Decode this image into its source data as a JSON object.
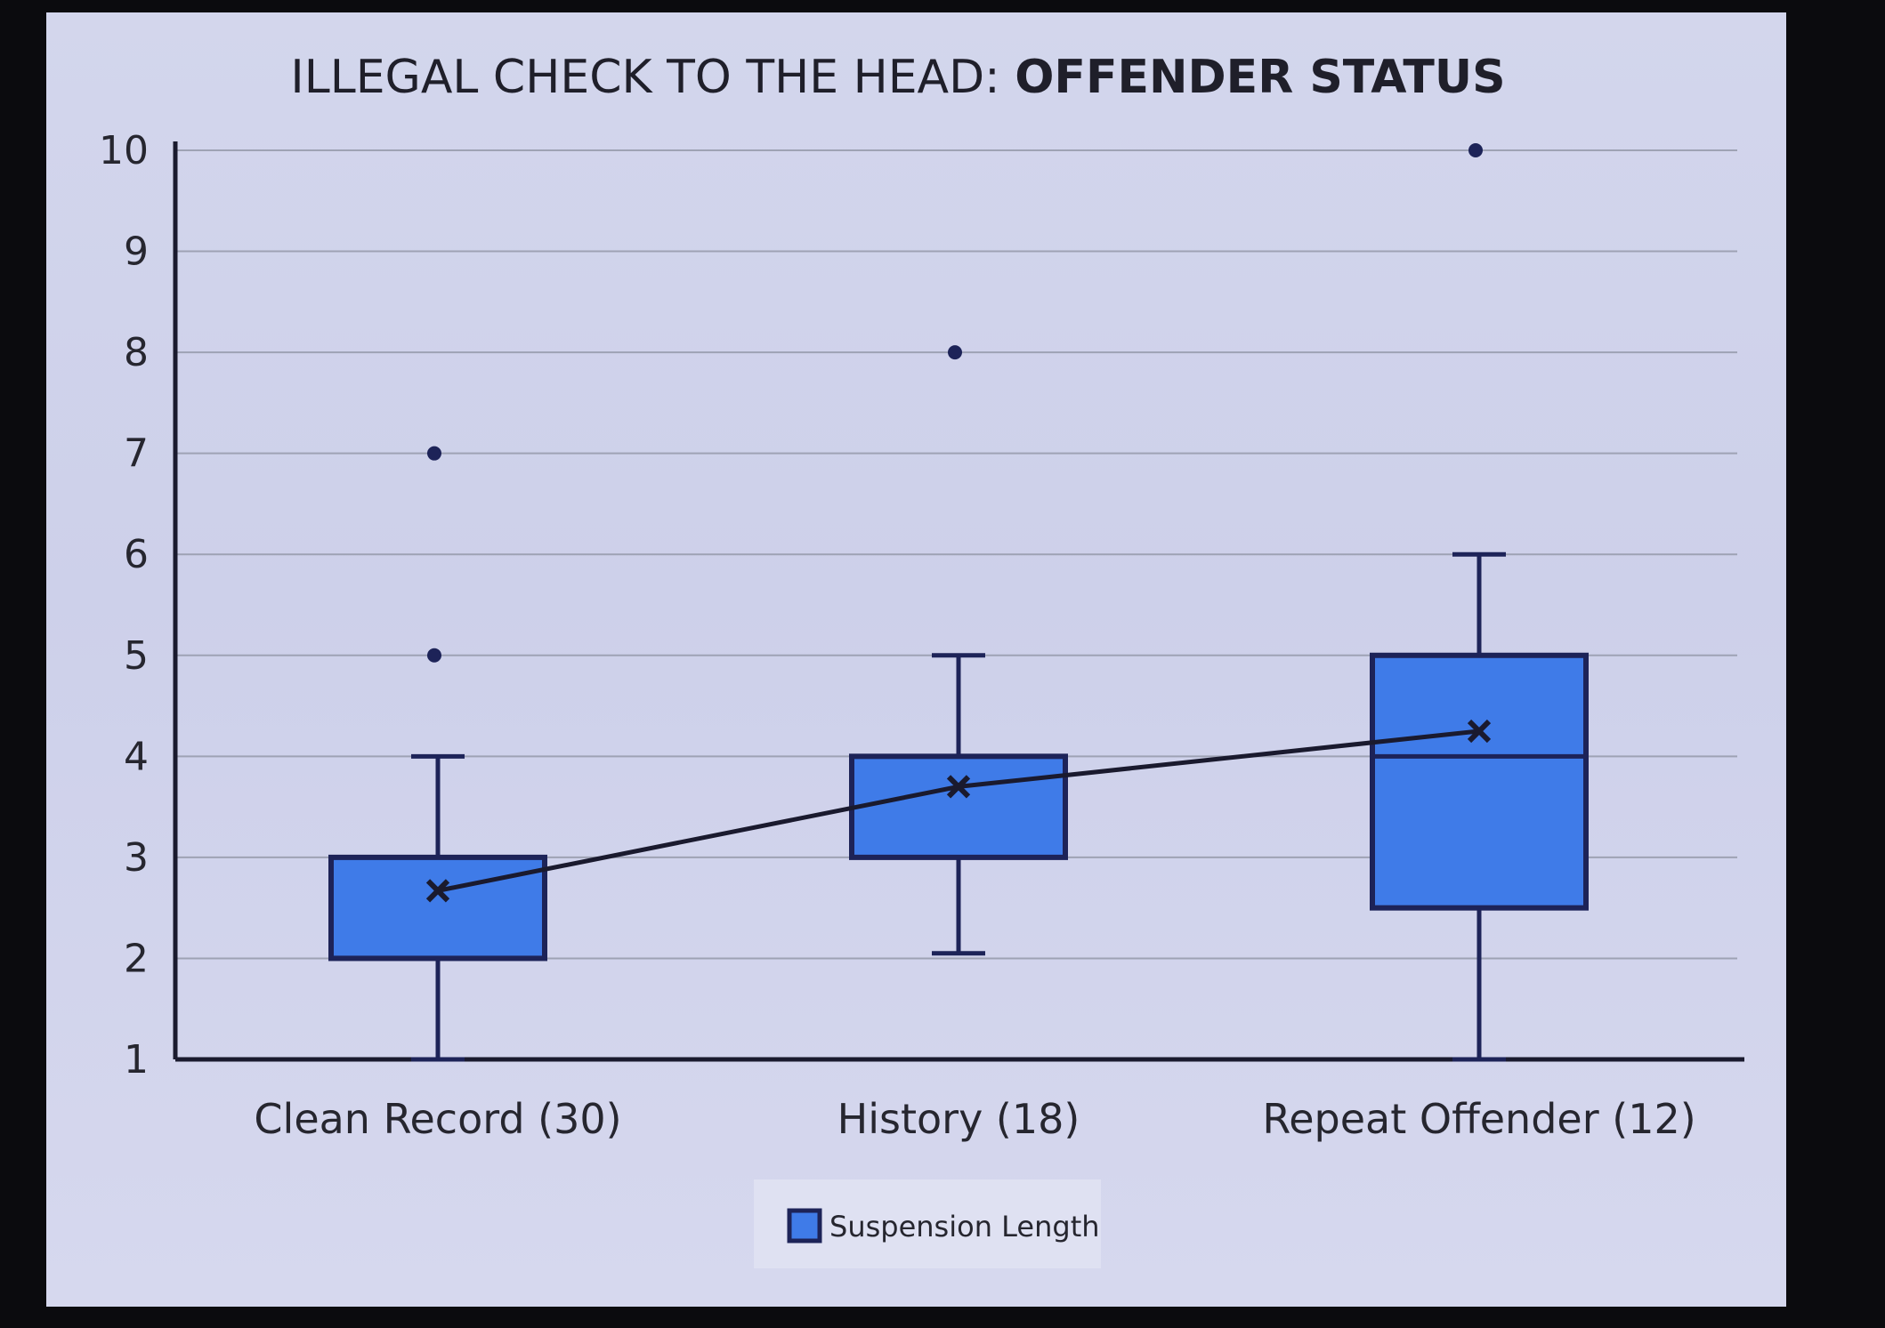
{
  "chart_data": {
    "type": "boxplot",
    "title_prefix": "ILLEGAL CHECK TO THE HEAD: ",
    "title_bold": "OFFENDER STATUS",
    "ylim": [
      1,
      10
    ],
    "yticks": [
      1,
      2,
      3,
      4,
      5,
      6,
      7,
      8,
      9,
      10
    ],
    "grid": true,
    "legend": {
      "position": "bottom",
      "entries": [
        "Suspension Length"
      ]
    },
    "series_name": "Suspension Length",
    "colors": {
      "box_fill": "#3f7be8",
      "box_stroke": "#1d2358",
      "mean_line": "#1a1a2e",
      "grid": "#9ea2b4"
    },
    "categories": [
      "Clean Record (30)",
      "History (18)",
      "Repeat Offender (12)"
    ],
    "boxes": [
      {
        "whisker_low": 1,
        "q1": 2,
        "median": 2,
        "q3": 3,
        "whisker_high": 4,
        "mean": 2.67,
        "outliers": [
          5,
          7
        ]
      },
      {
        "whisker_low": 2.05,
        "q1": 3,
        "median": 3,
        "q3": 4,
        "whisker_high": 5,
        "mean": 3.7,
        "outliers": [
          8
        ]
      },
      {
        "whisker_low": 1,
        "q1": 2.5,
        "median": 4,
        "q3": 5,
        "whisker_high": 6,
        "mean": 4.25,
        "outliers": [
          10
        ]
      }
    ]
  }
}
